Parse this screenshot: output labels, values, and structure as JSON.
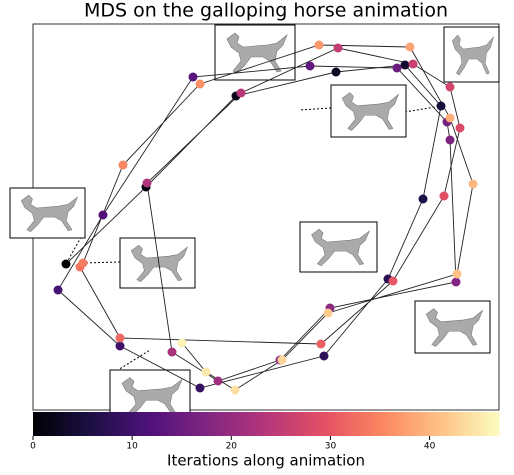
{
  "chart_data": {
    "type": "scatter",
    "title": "MDS on the galloping horse animation",
    "colorbar_label": "Iterations along animation",
    "colormap": "magma",
    "connect": true,
    "xlim": [
      0,
      466
    ],
    "ylim": [
      0,
      386
    ],
    "x": [
      33,
      113,
      203,
      303,
      372,
      408,
      390,
      355,
      291,
      167,
      87,
      25,
      70,
      160,
      277,
      364,
      414,
      417,
      423,
      297,
      247,
      185,
      139,
      114,
      208,
      305,
      380,
      417,
      427,
      411,
      360,
      288,
      87,
      47,
      50,
      90,
      167,
      286,
      377,
      417,
      440,
      424,
      295,
      249,
      202,
      173,
      149
    ],
    "y": [
      146,
      223,
      314,
      338,
      345,
      304,
      211,
      131,
      54,
      22,
      64,
      120,
      195,
      333,
      344,
      342,
      288,
      270,
      128,
      102,
      50,
      29,
      58,
      227,
      317,
      362,
      346,
      323,
      282,
      214,
      129,
      66,
      72,
      143,
      147,
      245,
      326,
      365,
      363,
      292,
      226,
      136,
      97,
      50,
      20,
      38,
      67
    ],
    "c": [
      0,
      1,
      2,
      3,
      4,
      5,
      6,
      7,
      8,
      9,
      10,
      11,
      12,
      13,
      14,
      15,
      16,
      17,
      18,
      19,
      20,
      21,
      22,
      23,
      24,
      25,
      26,
      27,
      28,
      29,
      30,
      31,
      32,
      33,
      34,
      35,
      36,
      37,
      38,
      39,
      40,
      41,
      42,
      43,
      44,
      45,
      46
    ],
    "clim": [
      0,
      47
    ],
    "cticks": [
      0,
      10,
      20,
      30,
      40
    ]
  }
}
